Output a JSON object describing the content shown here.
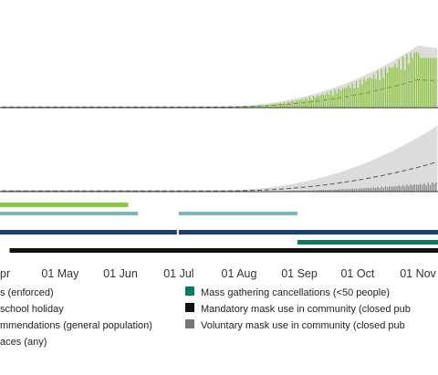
{
  "chart_data": [
    {
      "type": "bar",
      "panel": "top",
      "description_of_marks": "daily bars (green) over grey shaded band with dashed line",
      "x_axis_start": "2020-04-01",
      "x_axis_end": "2020-11-30",
      "series": [
        {
          "values_pattern": "low until Aug, rising steadily to peak in early Nov",
          "peak_date": "2020-11-03",
          "peak_relative": 1.0
        }
      ]
    },
    {
      "type": "bar",
      "panel": "middle",
      "description_of_marks": "small daily bars over grey shaded band with dashed line",
      "x_axis_start": "2020-04-01",
      "x_axis_end": "2020-11-30",
      "series": [
        {
          "values_pattern": "very low, slight rise from Sep",
          "peak_date": "2020-11-15",
          "peak_relative": 0.15
        }
      ]
    },
    {
      "type": "timeline",
      "panel": "bottom",
      "x_ticks": [
        "pr",
        "01 May",
        "01 Jun",
        "01 Jul",
        "01 Aug",
        "01 Sep",
        "01 Oct",
        "01 Nov"
      ],
      "intervention_bars": [
        {
          "color": "#8dc63f",
          "start": "2020-03-25",
          "end": "2020-06-05"
        },
        {
          "color": "#7fb5b5",
          "start": "2020-03-25",
          "end": "2020-06-10"
        },
        {
          "color": "#7fb5b5",
          "start": "2020-07-01",
          "end": "2020-08-31"
        },
        {
          "color": "#1f3f6e",
          "start": "2020-03-25",
          "end": "2020-06-30"
        },
        {
          "color": "#1f3f6e",
          "start": "2020-07-01",
          "end": "2020-11-30"
        },
        {
          "color": "#0b7a5e",
          "start": "2020-08-31",
          "end": "2020-11-30"
        },
        {
          "color": "#111111",
          "start": "2020-04-05",
          "end": "2020-11-30"
        }
      ]
    }
  ],
  "legend": {
    "left": [
      {
        "label": "s (enforced)"
      },
      {
        "label": "school holiday"
      },
      {
        "label": "mmendations (general population)"
      },
      {
        "label": "aces (any)"
      }
    ],
    "right": [
      {
        "label": "Mass gathering cancellations (<50 people)",
        "color": "#0b7a5e"
      },
      {
        "label": "Mandatory mask use in community (closed pub",
        "color": "#111111"
      },
      {
        "label": "Voluntary mask use in community (closed pub",
        "color": "#777777"
      }
    ]
  },
  "colors": {
    "bar_green": "#8dc63f",
    "band_grey": "#d9d9d9",
    "dash": "#555555"
  }
}
